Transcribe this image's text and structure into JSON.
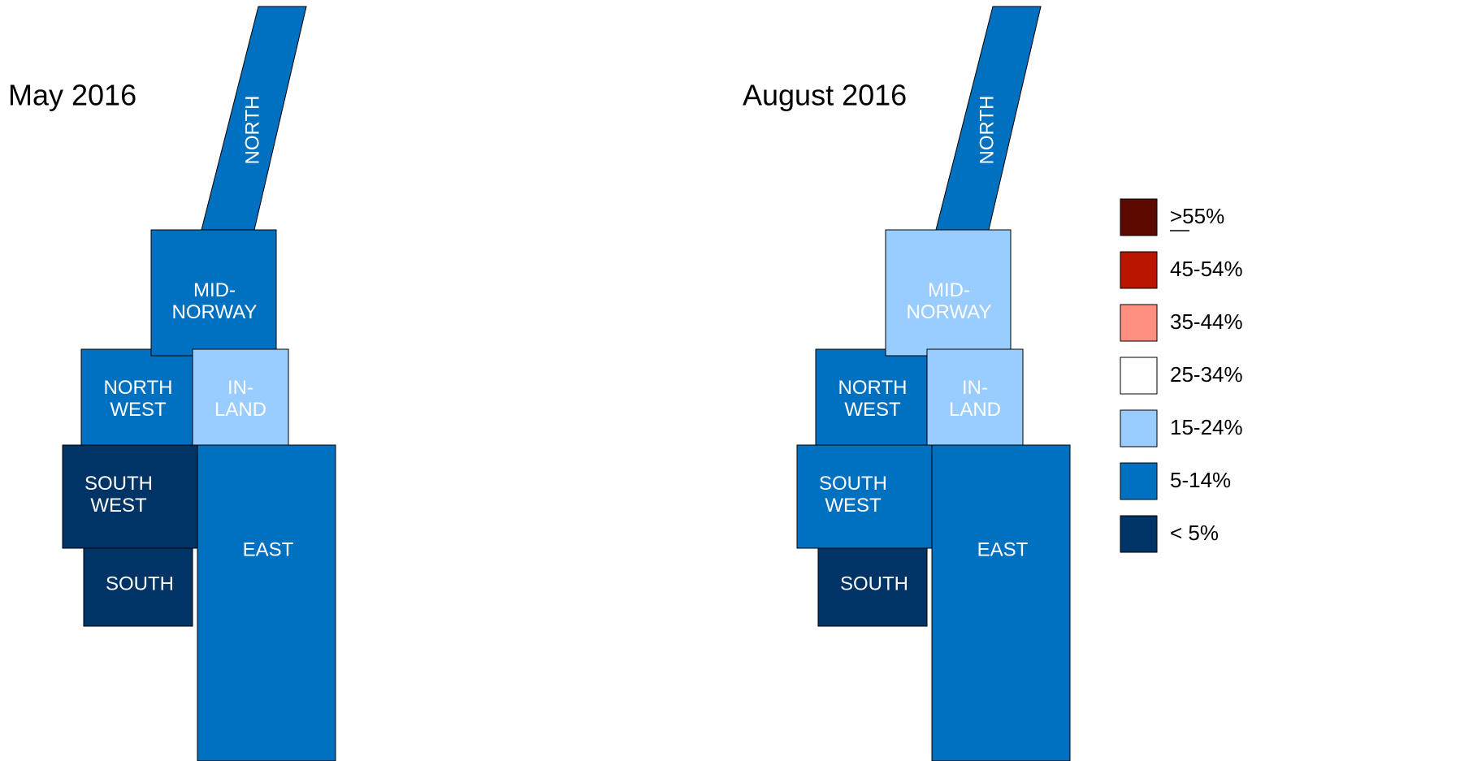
{
  "maps": [
    {
      "title": "May 2016",
      "regions": [
        {
          "label": [
            "NORTH"
          ],
          "color": "#0070c0"
        },
        {
          "label": [
            "NORTH",
            "WEST"
          ],
          "color": "#0070c0"
        },
        {
          "label": [
            "MID-",
            "NORWAY"
          ],
          "color": "#0070c0"
        },
        {
          "label": [
            "IN-",
            "LAND"
          ],
          "color": "#99ccff"
        },
        {
          "label": [
            "SOUTH",
            "WEST"
          ],
          "color": "#003366"
        },
        {
          "label": [
            "SOUTH"
          ],
          "color": "#003366"
        },
        {
          "label": [
            "EAST"
          ],
          "color": "#0070c0"
        }
      ]
    },
    {
      "title": "August 2016",
      "regions": [
        {
          "label": [
            "NORTH"
          ],
          "color": "#0070c0"
        },
        {
          "label": [
            "NORTH",
            "WEST"
          ],
          "color": "#0070c0"
        },
        {
          "label": [
            "MID-",
            "NORWAY"
          ],
          "color": "#99ccff"
        },
        {
          "label": [
            "IN-",
            "LAND"
          ],
          "color": "#99ccff"
        },
        {
          "label": [
            "SOUTH",
            "WEST"
          ],
          "color": "#0070c0"
        },
        {
          "label": [
            "SOUTH"
          ],
          "color": "#003366"
        },
        {
          "label": [
            "EAST"
          ],
          "color": "#0070c0"
        }
      ]
    }
  ],
  "legend": [
    {
      "label": ">55%",
      "color": "#5c0a00"
    },
    {
      "label": "45-54%",
      "color": "#b81400"
    },
    {
      "label": "35-44%",
      "color": "#ff8f80"
    },
    {
      "label": "25-34%",
      "color": "#ffffff"
    },
    {
      "label": "15-24%",
      "color": "#99ccff"
    },
    {
      "label": "5-14%",
      "color": "#0070c0"
    },
    {
      "label": "< 5%",
      "color": "#003366"
    }
  ]
}
